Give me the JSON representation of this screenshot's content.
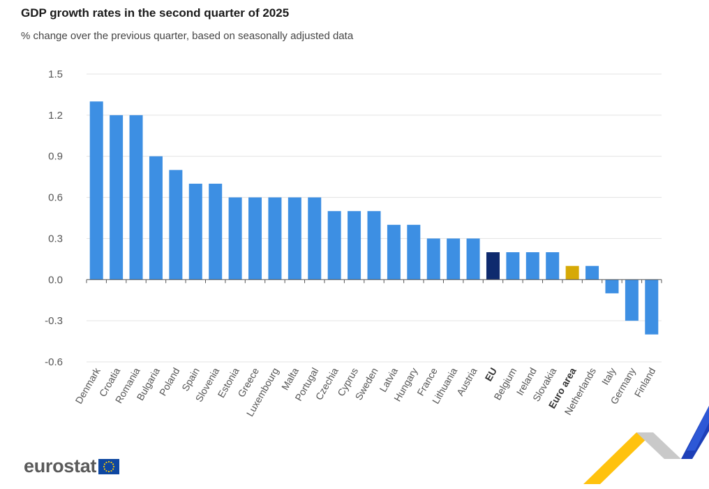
{
  "title": "GDP growth rates in the second quarter of 2025",
  "subtitle": "% change over the previous quarter, based on seasonally adjusted data",
  "logo_text": "eurostat",
  "colors": {
    "bar": "#3d8fe3",
    "eu": "#0e2a6e",
    "euro_area": "#d6a906",
    "grid": "#e3e3e3"
  },
  "chart_data": {
    "type": "bar",
    "title": "GDP growth rates in the second quarter of 2025",
    "subtitle": "% change over the previous quarter, based on seasonally adjusted data",
    "xlabel": "",
    "ylabel": "",
    "ylim": [
      -0.6,
      1.5
    ],
    "yticks": [
      "1.5",
      "1.2",
      "0.9",
      "0.6",
      "0.3",
      "0.0",
      "-0.3",
      "-0.6"
    ],
    "grid": true,
    "categories": [
      "Denmark",
      "Croatia",
      "Romania",
      "Bulgaria",
      "Poland",
      "Spain",
      "Slovenia",
      "Estonia",
      "Greece",
      "Luxembourg",
      "Malta",
      "Portugal",
      "Czechia",
      "Cyprus",
      "Sweden",
      "Latvia",
      "Hungary",
      "France",
      "Lithuania",
      "Austria",
      "EU",
      "Belgium",
      "Ireland",
      "Slovakia",
      "Euro area",
      "Netherlands",
      "Italy",
      "Germany",
      "Finland"
    ],
    "values": [
      1.3,
      1.2,
      1.2,
      0.9,
      0.8,
      0.7,
      0.7,
      0.6,
      0.6,
      0.6,
      0.6,
      0.6,
      0.5,
      0.5,
      0.5,
      0.4,
      0.4,
      0.3,
      0.3,
      0.3,
      0.2,
      0.2,
      0.2,
      0.2,
      0.1,
      0.1,
      -0.1,
      -0.3,
      -0.4
    ],
    "highlight": {
      "EU": "eu",
      "Euro area": "euro_area"
    }
  }
}
